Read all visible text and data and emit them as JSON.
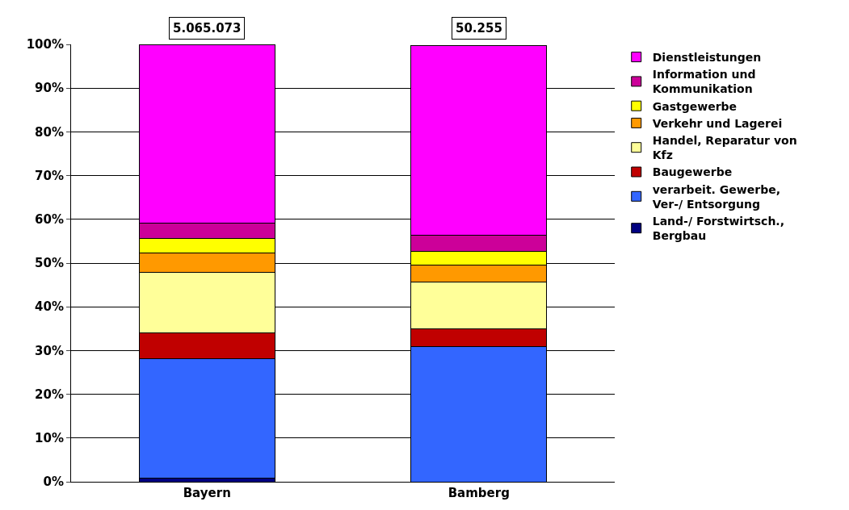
{
  "chart_data": {
    "type": "bar",
    "stacked": true,
    "categories": [
      "Bayern",
      "Bamberg"
    ],
    "series": [
      {
        "name": "Land-/ Forstwirtsch., Bergbau",
        "color": "#000080",
        "values": [
          0.8,
          null
        ]
      },
      {
        "name": "verarbeit. Gewerbe, Ver-/ Entsorgung",
        "color": "#3366ff",
        "values": [
          27.4,
          30.9
        ]
      },
      {
        "name": "Baugewerbe",
        "color": "#c00000",
        "values": [
          5.8,
          4.1
        ]
      },
      {
        "name": "Handel, Reparatur von Kfz",
        "color": "#ffff99",
        "values": [
          13.8,
          10.6
        ]
      },
      {
        "name": "Verkehr und Lagerei",
        "color": "#ff9900",
        "values": [
          4.5,
          4.0
        ]
      },
      {
        "name": "Gastgewerbe",
        "color": "#ffff00",
        "values": [
          3.3,
          3.1
        ]
      },
      {
        "name": "Information und Kommunikation",
        "color": "#cc0099",
        "values": [
          3.6,
          3.6
        ]
      },
      {
        "name": "Dienstleistungen",
        "color": "#ff00ff",
        "values": [
          40.8,
          43.5
        ]
      }
    ],
    "annotations": [
      {
        "text": "5.065.073",
        "x": "Bayern",
        "y": 100
      },
      {
        "text": "50.255",
        "x": "Bamberg",
        "y": 100
      }
    ],
    "ylim": [
      0,
      100
    ],
    "yticks": [
      {
        "value": 0,
        "label": "0%"
      },
      {
        "value": 10,
        "label": "10%"
      },
      {
        "value": 20,
        "label": "20%"
      },
      {
        "value": 30,
        "label": "30%"
      },
      {
        "value": 40,
        "label": "40%"
      },
      {
        "value": 50,
        "label": "50%"
      },
      {
        "value": 60,
        "label": "60%"
      },
      {
        "value": 70,
        "label": "70%"
      },
      {
        "value": 80,
        "label": "80%"
      },
      {
        "value": 90,
        "label": "90%"
      },
      {
        "value": 100,
        "label": "100%"
      }
    ],
    "grid": "y",
    "legend": "right"
  }
}
